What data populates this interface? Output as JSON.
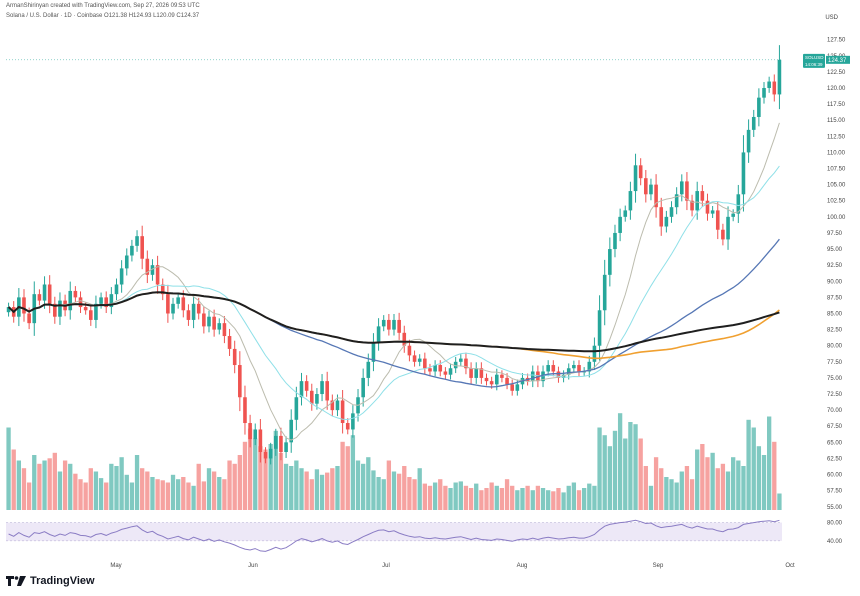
{
  "header": {
    "credit": "ArmanShirinyan created with TradingView.com, Sep 27, 2026 09:53 UTC",
    "symbol_line": "Solana / U.S. Dollar · 1D · Coinbase  O121.38  H124.93  L120.09  C124.37"
  },
  "currency": "USD",
  "brand": {
    "name": "TradingView"
  },
  "colors": {
    "up": "#26a69a",
    "down": "#ef5350",
    "vol_up": "#80c9c1",
    "vol_down": "#f6a2a0",
    "ma200": "#1f1f1f",
    "ma100": "#f0a030",
    "ma50": "#5677b5",
    "ma20": "#8fe0e8",
    "ma10": "#bcbcae",
    "rsi": "#8a7cc4"
  },
  "price_label": {
    "symbol": "SOLUSD",
    "price": "124.37",
    "countdown": "14:06:39"
  },
  "chart_data": {
    "type": "candlestick",
    "x_labels": [
      "May",
      "Jun",
      "Jul",
      "Aug",
      "Sep",
      "Oct"
    ],
    "y_ticks": [
      "127.50",
      "125.00",
      "122.50",
      "120.00",
      "117.50",
      "115.00",
      "112.50",
      "110.00",
      "107.50",
      "105.00",
      "102.50",
      "100.00",
      "97.50",
      "95.00",
      "92.50",
      "90.00",
      "87.50",
      "85.00",
      "82.50",
      "80.00",
      "77.50",
      "75.00",
      "72.50",
      "70.00",
      "67.50",
      "65.00",
      "62.50",
      "60.00",
      "57.50",
      "55.00"
    ],
    "ylim": [
      54.5,
      129
    ],
    "rsi_ticks": [
      "80.00",
      "40.00"
    ],
    "rsi_ylim": [
      20,
      90
    ],
    "close": [
      86.0,
      84.5,
      87.5,
      85.0,
      83.5,
      88.0,
      87.0,
      89.5,
      86.5,
      84.5,
      87.0,
      85.5,
      88.5,
      87.5,
      86.0,
      85.5,
      84.0,
      86.5,
      87.5,
      86.0,
      88.0,
      89.5,
      92.0,
      94.0,
      95.5,
      97.0,
      93.5,
      91.0,
      92.5,
      89.5,
      88.0,
      85.0,
      86.5,
      87.5,
      85.5,
      84.0,
      86.5,
      85.0,
      83.0,
      84.5,
      82.5,
      83.5,
      81.5,
      79.5,
      77.0,
      72.0,
      68.0,
      65.5,
      67.0,
      63.5,
      62.5,
      64.0,
      66.0,
      63.5,
      65.0,
      68.5,
      72.0,
      74.5,
      73.0,
      71.0,
      72.5,
      74.5,
      71.5,
      70.0,
      71.5,
      68.0,
      67.0,
      69.5,
      72.0,
      75.0,
      77.5,
      80.5,
      83.0,
      84.0,
      82.5,
      84.0,
      82.0,
      80.0,
      78.5,
      77.5,
      78.0,
      76.5,
      76.0,
      77.0,
      76.0,
      75.5,
      76.5,
      77.5,
      78.0,
      76.5,
      75.0,
      76.5,
      75.0,
      74.5,
      74.0,
      75.5,
      75.0,
      74.0,
      73.0,
      74.0,
      75.0,
      74.5,
      76.0,
      74.5,
      76.0,
      77.0,
      76.0,
      75.0,
      75.5,
      76.5,
      77.0,
      76.0,
      76.0,
      77.5,
      80.0,
      85.5,
      91.0,
      95.0,
      97.5,
      100.0,
      101.0,
      104.0,
      108.0,
      106.0,
      103.5,
      105.0,
      101.5,
      98.5,
      100.0,
      101.5,
      103.5,
      105.5,
      102.5,
      101.0,
      104.0,
      102.5,
      100.5,
      101.0,
      98.0,
      96.5,
      100.0,
      100.5,
      103.5,
      110.0,
      113.5,
      115.5,
      118.5,
      120.0,
      121.0,
      119.0,
      124.37
    ],
    "volume": [
      0.75,
      0.55,
      0.45,
      0.38,
      0.25,
      0.5,
      0.42,
      0.45,
      0.47,
      0.52,
      0.35,
      0.45,
      0.42,
      0.33,
      0.28,
      0.25,
      0.38,
      0.35,
      0.29,
      0.25,
      0.42,
      0.4,
      0.48,
      0.32,
      0.25,
      0.5,
      0.38,
      0.35,
      0.3,
      0.28,
      0.27,
      0.25,
      0.32,
      0.28,
      0.3,
      0.25,
      0.22,
      0.42,
      0.26,
      0.38,
      0.35,
      0.3,
      0.28,
      0.45,
      0.42,
      0.5,
      0.62,
      0.74,
      0.65,
      0.58,
      0.55,
      0.6,
      0.72,
      0.52,
      0.42,
      0.4,
      0.45,
      0.38,
      0.35,
      0.28,
      0.37,
      0.32,
      0.34,
      0.38,
      0.4,
      0.62,
      0.58,
      0.68,
      0.45,
      0.42,
      0.48,
      0.36,
      0.3,
      0.28,
      0.45,
      0.35,
      0.33,
      0.4,
      0.3,
      0.28,
      0.38,
      0.24,
      0.22,
      0.25,
      0.28,
      0.22,
      0.2,
      0.25,
      0.26,
      0.22,
      0.2,
      0.24,
      0.18,
      0.2,
      0.25,
      0.22,
      0.2,
      0.28,
      0.22,
      0.18,
      0.2,
      0.22,
      0.18,
      0.22,
      0.2,
      0.18,
      0.17,
      0.2,
      0.16,
      0.22,
      0.25,
      0.18,
      0.2,
      0.24,
      0.22,
      0.75,
      0.68,
      0.58,
      0.72,
      0.88,
      0.65,
      0.8,
      0.78,
      0.65,
      0.4,
      0.22,
      0.48,
      0.38,
      0.3,
      0.28,
      0.25,
      0.35,
      0.4,
      0.28,
      0.55,
      0.6,
      0.48,
      0.52,
      0.38,
      0.42,
      0.35,
      0.48,
      0.45,
      0.4,
      0.82,
      0.75,
      0.58,
      0.5,
      0.85,
      0.62,
      0.15
    ],
    "rsi": [
      55,
      50,
      58,
      52,
      48,
      58,
      56,
      60,
      54,
      50,
      55,
      52,
      58,
      56,
      52,
      51,
      48,
      54,
      56,
      52,
      57,
      60,
      65,
      68,
      71,
      73,
      64,
      58,
      61,
      54,
      50,
      44,
      47,
      50,
      45,
      42,
      48,
      44,
      40,
      44,
      39,
      42,
      38,
      35,
      31,
      26,
      22,
      20,
      23,
      18,
      17,
      21,
      26,
      22,
      25,
      32,
      40,
      45,
      42,
      38,
      41,
      45,
      40,
      37,
      40,
      34,
      32,
      38,
      43,
      49,
      54,
      59,
      63,
      64,
      60,
      62,
      57,
      53,
      50,
      48,
      49,
      46,
      45,
      47,
      45,
      44,
      46,
      48,
      49,
      46,
      43,
      46,
      43,
      42,
      41,
      44,
      43,
      41,
      39,
      42,
      44,
      43,
      46,
      43,
      46,
      48,
      46,
      44,
      45,
      47,
      48,
      46,
      46,
      49,
      54,
      64,
      72,
      76,
      78,
      80,
      81,
      83,
      85,
      82,
      78,
      79,
      73,
      69,
      71,
      72,
      74,
      76,
      71,
      68,
      72,
      69,
      66,
      66,
      62,
      60,
      65,
      66,
      69,
      76,
      78,
      80,
      82,
      83,
      84,
      82,
      85
    ]
  }
}
